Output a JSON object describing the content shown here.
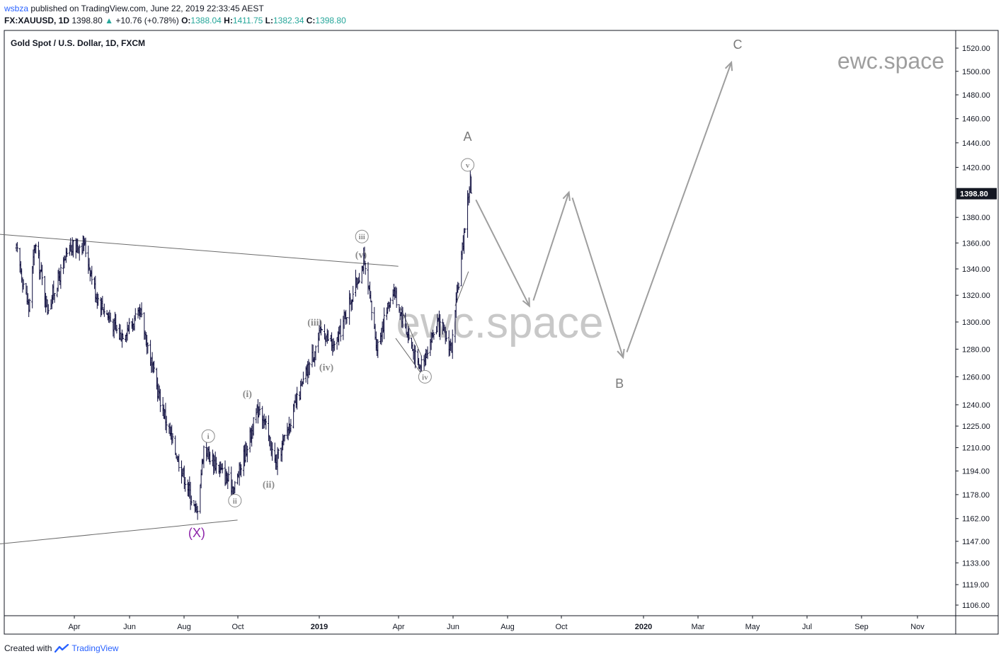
{
  "header": {
    "publisher_user": "wsbza",
    "published_text": "published on TradingView.com, June 22, 2019 22:33:45 AEST"
  },
  "quote": {
    "symbol": "FX:XAUUSD, 1D",
    "last": "1398.80",
    "arrow": "▲",
    "change": "+10.76 (+0.78%)",
    "open_label": "O:",
    "open": "1388.04",
    "high_label": "H:",
    "high": "1411.75",
    "low_label": "L:",
    "low": "1382.34",
    "close_label": "C:",
    "close": "1398.80"
  },
  "footer": {
    "created_with": "Created with",
    "brand": "TradingView"
  },
  "colors": {
    "candle": "#0d0c3d",
    "projection": "#9e9e9e",
    "wave_label": "#8a8a8a",
    "x_label": "#8e24aa",
    "last_price_bg": "#131722",
    "axis_line": "#131722",
    "brand": "#2962ff",
    "up": "#26a69a"
  },
  "chart_data": {
    "type": "candlestick",
    "title": "Gold Spot / U.S. Dollar, 1D, FXCM",
    "watermark": "ewc.space",
    "yaxis": {
      "scale": "log",
      "ticks": [
        "1520.00",
        "1500.00",
        "1480.00",
        "1460.00",
        "1440.00",
        "1420.00",
        "1398.80",
        "1380.00",
        "1360.00",
        "1340.00",
        "1320.00",
        "1300.00",
        "1280.00",
        "1260.00",
        "1240.00",
        "1225.00",
        "1210.00",
        "1194.00",
        "1178.00",
        "1162.00",
        "1147.00",
        "1133.00",
        "1119.00",
        "1106.00"
      ],
      "last_price": "1398.80"
    },
    "xaxis": {
      "ticks": [
        "Apr",
        "Jun",
        "Aug",
        "Oct",
        "2019",
        "Apr",
        "Jun",
        "Aug",
        "Oct",
        "2020",
        "Mar",
        "May",
        "Jul",
        "Sep",
        "Nov"
      ],
      "bold_ticks": [
        "2019",
        "2020"
      ]
    },
    "price_path": [
      {
        "date": "2018-01-25",
        "price": 1355
      },
      {
        "date": "2018-02-08",
        "price": 1310
      },
      {
        "date": "2018-02-15",
        "price": 1360
      },
      {
        "date": "2018-03-01",
        "price": 1310
      },
      {
        "date": "2018-03-26",
        "price": 1355
      },
      {
        "date": "2018-04-11",
        "price": 1360
      },
      {
        "date": "2018-04-25",
        "price": 1320
      },
      {
        "date": "2018-05-21",
        "price": 1290
      },
      {
        "date": "2018-06-14",
        "price": 1305
      },
      {
        "date": "2018-07-03",
        "price": 1250
      },
      {
        "date": "2018-07-19",
        "price": 1215
      },
      {
        "date": "2018-08-16",
        "price": 1165
      },
      {
        "date": "2018-08-24",
        "price": 1210
      },
      {
        "date": "2018-09-27",
        "price": 1182
      },
      {
        "date": "2018-10-26",
        "price": 1240
      },
      {
        "date": "2018-11-13",
        "price": 1198
      },
      {
        "date": "2019-01-04",
        "price": 1295
      },
      {
        "date": "2019-01-18",
        "price": 1280
      },
      {
        "date": "2019-02-20",
        "price": 1346
      },
      {
        "date": "2019-03-07",
        "price": 1282
      },
      {
        "date": "2019-03-25",
        "price": 1325
      },
      {
        "date": "2019-04-23",
        "price": 1266
      },
      {
        "date": "2019-05-14",
        "price": 1298
      },
      {
        "date": "2019-05-30",
        "price": 1281
      },
      {
        "date": "2019-06-20",
        "price": 1411
      },
      {
        "date": "2019-06-21",
        "price": 1398.8
      }
    ],
    "projection": [
      {
        "date": "2019-06-22",
        "price": 1400
      },
      {
        "date": "2019-08-27",
        "price": 1310
      },
      {
        "date": "2019-10-10",
        "price": 1402
      },
      {
        "date": "2019-12-10",
        "price": 1272
      },
      {
        "date": "2020-04-10",
        "price": 1510
      }
    ],
    "trendlines": [
      {
        "from": {
          "date": "2018-01-01",
          "price": 1367
        },
        "to": {
          "date": "2019-03-31",
          "price": 1342
        }
      },
      {
        "from": {
          "date": "2018-01-01",
          "price": 1145
        },
        "to": {
          "date": "2018-10-01",
          "price": 1161
        }
      },
      {
        "from": {
          "date": "2019-04-03",
          "price": 1310
        },
        "to": {
          "date": "2019-04-26",
          "price": 1275
        }
      },
      {
        "from": {
          "date": "2019-03-28",
          "price": 1288
        },
        "to": {
          "date": "2019-04-25",
          "price": 1263
        }
      },
      {
        "from": {
          "date": "2019-06-03",
          "price": 1312
        },
        "to": {
          "date": "2019-06-18",
          "price": 1338
        }
      }
    ],
    "wave_labels": [
      {
        "text": "(X)",
        "date": "2018-08-16",
        "price": 1153,
        "style": "x"
      },
      {
        "text": "i",
        "date": "2018-08-29",
        "price": 1218,
        "style": "circled"
      },
      {
        "text": "ii",
        "date": "2018-09-28",
        "price": 1174,
        "style": "circled"
      },
      {
        "text": "(i)",
        "date": "2018-10-12",
        "price": 1248,
        "style": "paren"
      },
      {
        "text": "(ii)",
        "date": "2018-11-05",
        "price": 1185,
        "style": "paren"
      },
      {
        "text": "(iii)",
        "date": "2018-12-27",
        "price": 1300,
        "style": "paren"
      },
      {
        "text": "(iv)",
        "date": "2019-01-09",
        "price": 1267,
        "style": "paren"
      },
      {
        "text": "(v)",
        "date": "2019-02-17",
        "price": 1351,
        "style": "paren"
      },
      {
        "text": "iii",
        "date": "2019-02-18",
        "price": 1365,
        "style": "circled"
      },
      {
        "text": "iv",
        "date": "2019-04-30",
        "price": 1260,
        "style": "circled"
      },
      {
        "text": "v",
        "date": "2019-06-17",
        "price": 1422,
        "style": "circled"
      },
      {
        "text": "A",
        "date": "2019-06-17",
        "price": 1445,
        "style": "big"
      },
      {
        "text": "B",
        "date": "2019-12-05",
        "price": 1255,
        "style": "big"
      },
      {
        "text": "C",
        "date": "2020-04-16",
        "price": 1523,
        "style": "big"
      }
    ]
  }
}
